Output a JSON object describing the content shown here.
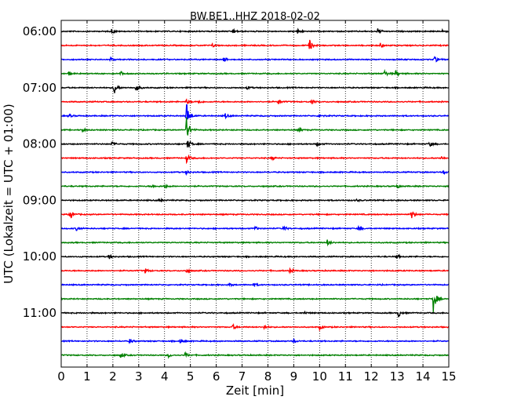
{
  "chart_data": {
    "type": "line",
    "title": "BW.BE1..HHZ 2018-02-02",
    "xlabel": "Zeit  [min]",
    "ylabel": "UTC (Lokalzeit = UTC + 01:00)",
    "xlim": [
      0,
      15
    ],
    "x_ticks": [
      "0",
      "1",
      "2",
      "3",
      "4",
      "5",
      "6",
      "7",
      "8",
      "9",
      "10",
      "11",
      "12",
      "13",
      "14",
      "15"
    ],
    "y_ticks": [
      "06:00",
      "07:00",
      "08:00",
      "09:00",
      "10:00",
      "11:00"
    ],
    "grid": "vertical-dotted",
    "trace_colors": [
      "#000000",
      "#ff0000",
      "#0000ff",
      "#008000"
    ],
    "traces": [
      {
        "start": "06:00",
        "events": [
          [
            1.95,
            0.3
          ],
          [
            6.65,
            0.3
          ],
          [
            9.15,
            0.3
          ],
          [
            12.25,
            0.35
          ],
          [
            14.75,
            0.25
          ]
        ]
      },
      {
        "start": "06:15",
        "events": [
          [
            5.85,
            0.2
          ],
          [
            9.6,
            0.8
          ],
          [
            12.35,
            0.3
          ]
        ]
      },
      {
        "start": "06:30",
        "events": [
          [
            1.9,
            0.3
          ],
          [
            6.3,
            0.3
          ],
          [
            14.45,
            0.4
          ]
        ]
      },
      {
        "start": "06:45",
        "events": [
          [
            0.3,
            0.3
          ],
          [
            2.3,
            0.25
          ],
          [
            12.5,
            0.4
          ],
          [
            12.95,
            0.4
          ]
        ]
      },
      {
        "start": "07:00",
        "events": [
          [
            2.05,
            0.9
          ],
          [
            2.9,
            0.6
          ],
          [
            7.2,
            0.2
          ]
        ]
      },
      {
        "start": "07:15",
        "events": [
          [
            4.85,
            0.3
          ],
          [
            5.3,
            0.25
          ],
          [
            8.4,
            0.3
          ],
          [
            9.7,
            0.25
          ]
        ]
      },
      {
        "start": "07:30",
        "events": [
          [
            0.3,
            0.25
          ],
          [
            4.85,
            1.8
          ],
          [
            6.35,
            0.3
          ],
          [
            10.0,
            0.25
          ]
        ]
      },
      {
        "start": "07:45",
        "events": [
          [
            0.8,
            0.25
          ],
          [
            4.85,
            1.6
          ],
          [
            9.2,
            0.2
          ]
        ]
      },
      {
        "start": "08:00",
        "events": [
          [
            1.95,
            0.25
          ],
          [
            4.9,
            0.7
          ],
          [
            9.9,
            0.25
          ],
          [
            14.25,
            0.35
          ]
        ]
      },
      {
        "start": "08:15",
        "events": [
          [
            4.85,
            0.6
          ],
          [
            8.15,
            0.25
          ],
          [
            14.7,
            0.25
          ]
        ]
      },
      {
        "start": "08:30",
        "events": [
          [
            4.85,
            0.3
          ],
          [
            14.8,
            0.25
          ]
        ]
      },
      {
        "start": "08:45",
        "events": [
          [
            3.5,
            0.25
          ],
          [
            4.0,
            0.25
          ],
          [
            13.0,
            0.25
          ]
        ]
      },
      {
        "start": "09:00",
        "events": [
          [
            3.8,
            0.2
          ],
          [
            11.4,
            0.15
          ]
        ]
      },
      {
        "start": "09:15",
        "events": [
          [
            0.35,
            0.65
          ],
          [
            13.55,
            0.75
          ]
        ]
      },
      {
        "start": "09:30",
        "events": [
          [
            0.6,
            0.3
          ],
          [
            7.5,
            0.25
          ],
          [
            8.6,
            0.35
          ],
          [
            11.5,
            0.25
          ]
        ]
      },
      {
        "start": "09:45",
        "events": [
          [
            10.3,
            0.35
          ]
        ]
      },
      {
        "start": "10:00",
        "events": [
          [
            1.85,
            0.3
          ],
          [
            13.0,
            0.25
          ]
        ]
      },
      {
        "start": "10:15",
        "events": [
          [
            3.25,
            0.3
          ],
          [
            4.85,
            0.25
          ],
          [
            8.85,
            0.3
          ]
        ]
      },
      {
        "start": "10:30",
        "events": [
          [
            6.5,
            0.2
          ],
          [
            7.45,
            0.25
          ]
        ]
      },
      {
        "start": "10:45",
        "events": [
          [
            14.4,
            1.7
          ]
        ]
      },
      {
        "start": "11:00",
        "events": [
          [
            13.05,
            0.55
          ],
          [
            9.4,
            0.15
          ]
        ]
      },
      {
        "start": "11:15",
        "events": [
          [
            6.65,
            0.3
          ],
          [
            7.85,
            0.25
          ],
          [
            10.0,
            0.3
          ]
        ]
      },
      {
        "start": "11:30",
        "events": [
          [
            2.65,
            0.3
          ],
          [
            4.6,
            0.35
          ],
          [
            9.0,
            0.25
          ]
        ]
      },
      {
        "start": "11:45",
        "events": [
          [
            2.3,
            0.35
          ],
          [
            4.15,
            0.25
          ],
          [
            4.8,
            0.3
          ]
        ]
      }
    ]
  }
}
